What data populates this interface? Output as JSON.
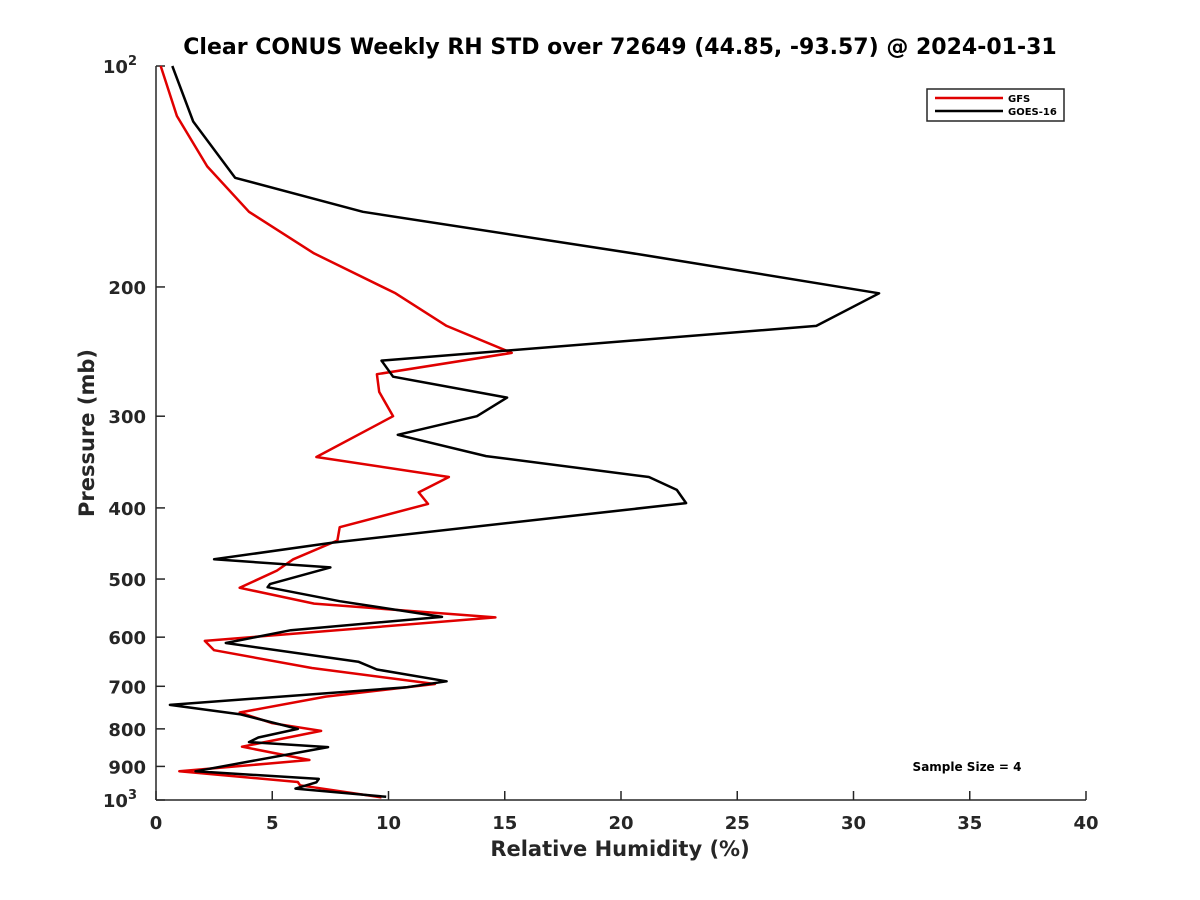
{
  "chart_data": {
    "type": "line",
    "title": "Clear CONUS Weekly RH STD over 72649 (44.85, -93.57) @ 2024-01-31",
    "xlabel": "Relative Humidity (%)",
    "ylabel": "Pressure (mb)",
    "xlim": [
      0,
      40
    ],
    "ylim": [
      100,
      1000
    ],
    "y_scale": "log",
    "y_reversed": true,
    "x_ticks": [
      "0",
      "5",
      "10",
      "15",
      "20",
      "25",
      "30",
      "35",
      "40"
    ],
    "y_ticks": [
      {
        "value": 100,
        "label": "10",
        "sup": "2"
      },
      {
        "value": 200,
        "label": "200",
        "sup": ""
      },
      {
        "value": 300,
        "label": "300",
        "sup": ""
      },
      {
        "value": 400,
        "label": "400",
        "sup": ""
      },
      {
        "value": 500,
        "label": "500",
        "sup": ""
      },
      {
        "value": 600,
        "label": "600",
        "sup": ""
      },
      {
        "value": 700,
        "label": "700",
        "sup": ""
      },
      {
        "value": 800,
        "label": "800",
        "sup": ""
      },
      {
        "value": 900,
        "label": "900",
        "sup": ""
      },
      {
        "value": 1000,
        "label": "10",
        "sup": "3"
      }
    ],
    "grid": false,
    "legend_position": "top-right",
    "annotation": "Sample Size = 4",
    "series": [
      {
        "name": "GFS",
        "color": "#e00000",
        "points": [
          [
            0.2,
            100
          ],
          [
            0.9,
            117
          ],
          [
            2.2,
            137
          ],
          [
            4.0,
            158
          ],
          [
            6.8,
            180
          ],
          [
            10.3,
            204
          ],
          [
            12.5,
            226
          ],
          [
            15.3,
            246
          ],
          [
            9.5,
            263
          ],
          [
            9.6,
            278
          ],
          [
            10.2,
            300
          ],
          [
            6.9,
            341
          ],
          [
            12.6,
            363
          ],
          [
            11.3,
            381
          ],
          [
            11.7,
            395
          ],
          [
            7.9,
            425
          ],
          [
            7.8,
            443
          ],
          [
            5.9,
            470
          ],
          [
            5.2,
            487
          ],
          [
            3.6,
            514
          ],
          [
            6.8,
            540
          ],
          [
            14.6,
            564
          ],
          [
            2.1,
            607
          ],
          [
            2.5,
            625
          ],
          [
            6.7,
            661
          ],
          [
            12.0,
            695
          ],
          [
            7.3,
            723
          ],
          [
            3.6,
            760
          ],
          [
            5.0,
            786
          ],
          [
            7.1,
            805
          ],
          [
            3.7,
            846
          ],
          [
            6.6,
            882
          ],
          [
            1.0,
            914
          ],
          [
            6.1,
            945
          ],
          [
            6.2,
            955
          ],
          [
            9.7,
            992
          ]
        ]
      },
      {
        "name": "GOES-16",
        "color": "#000000",
        "points": [
          [
            0.7,
            100
          ],
          [
            1.6,
            119
          ],
          [
            3.4,
            142
          ],
          [
            8.9,
            158
          ],
          [
            21.0,
            181
          ],
          [
            31.1,
            204
          ],
          [
            28.4,
            226
          ],
          [
            9.7,
            252
          ],
          [
            10.2,
            265
          ],
          [
            15.1,
            283
          ],
          [
            13.8,
            300
          ],
          [
            10.4,
            318
          ],
          [
            14.2,
            340
          ],
          [
            21.2,
            363
          ],
          [
            22.4,
            378
          ],
          [
            22.8,
            394
          ],
          [
            7.6,
            446
          ],
          [
            2.5,
            470
          ],
          [
            7.5,
            482
          ],
          [
            4.9,
            508
          ],
          [
            4.8,
            513
          ],
          [
            7.9,
            536
          ],
          [
            12.3,
            563
          ],
          [
            5.8,
            587
          ],
          [
            3.0,
            611
          ],
          [
            8.7,
            648
          ],
          [
            9.5,
            664
          ],
          [
            12.5,
            689
          ],
          [
            10.8,
            702
          ],
          [
            0.6,
            742
          ],
          [
            3.6,
            764
          ],
          [
            6.1,
            800
          ],
          [
            4.4,
            822
          ],
          [
            4.0,
            834
          ],
          [
            7.4,
            847
          ],
          [
            1.7,
            914
          ],
          [
            7.0,
            936
          ],
          [
            6.9,
            946
          ],
          [
            6.0,
            965
          ],
          [
            9.9,
            990
          ]
        ]
      }
    ]
  }
}
